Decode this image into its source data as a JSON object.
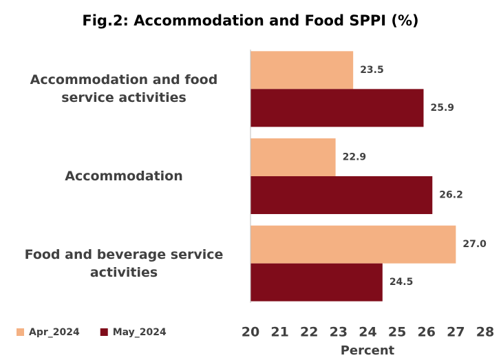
{
  "chart_data": {
    "type": "bar",
    "orientation": "horizontal",
    "title": "Fig.2:  Accommodation and Food SPPI (%)",
    "x_label": "Percent",
    "categories": [
      "Accommodation and food service activities",
      "Accommodation",
      "Food and beverage service activities"
    ],
    "series": [
      {
        "name": "Apr_2024",
        "color": "#f4b183",
        "values": [
          23.5,
          22.9,
          27.0
        ],
        "value_labels": [
          "23.5",
          "22.9",
          "27.0"
        ]
      },
      {
        "name": "May_2024",
        "color": "#7f0c1a",
        "values": [
          25.9,
          26.2,
          24.5
        ],
        "value_labels": [
          "25.9",
          "26.2",
          "24.5"
        ]
      }
    ],
    "xlim": [
      20,
      28
    ],
    "xticks": [
      20,
      21,
      22,
      23,
      24,
      25,
      26,
      27,
      28
    ],
    "grid": false,
    "legend": "bottom-left"
  }
}
